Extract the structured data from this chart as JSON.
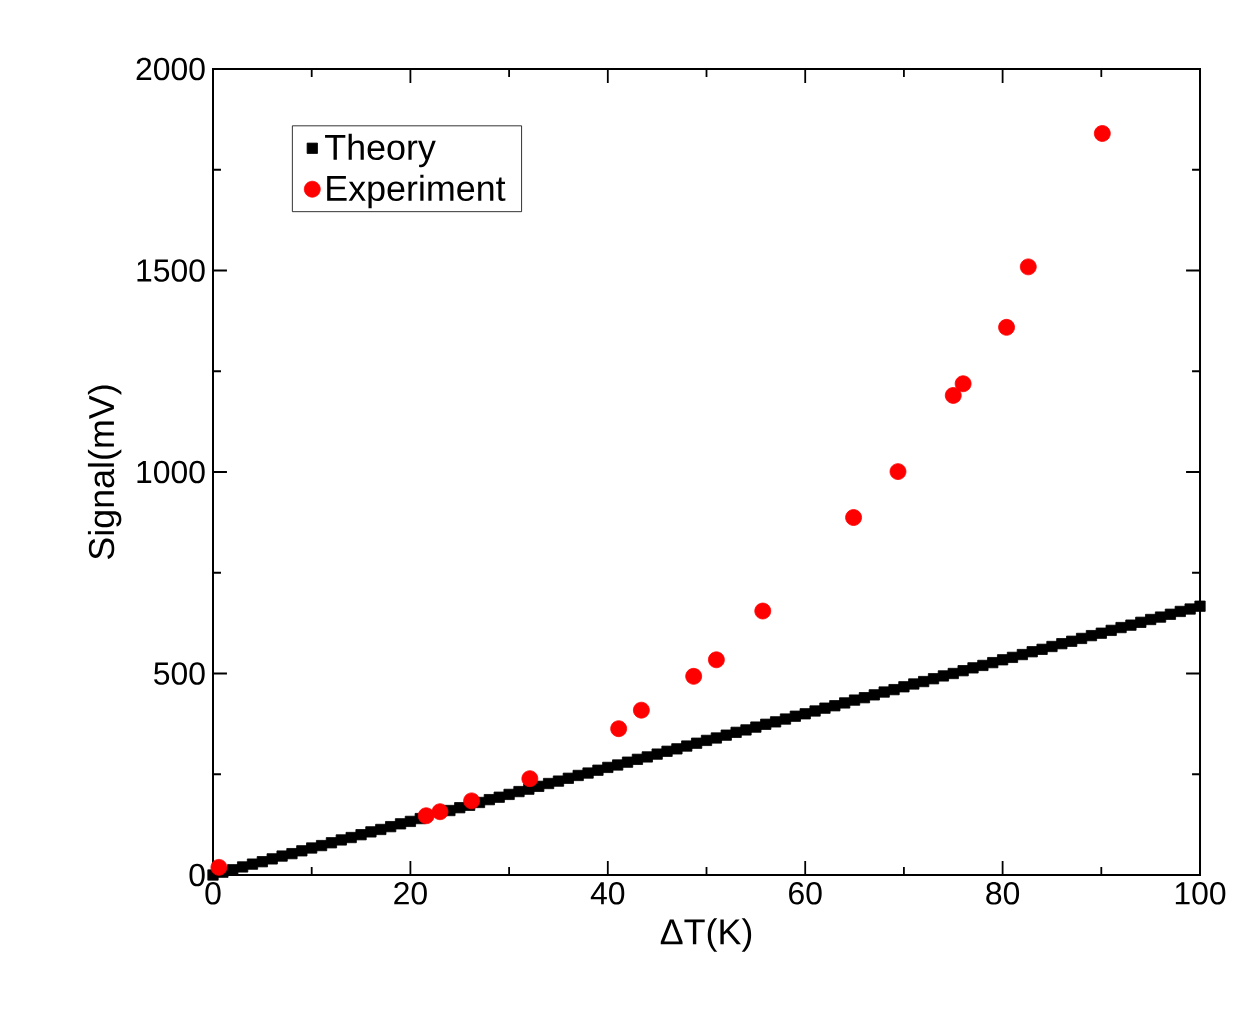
{
  "chart_data": {
    "type": "scatter",
    "xlabel": "ΔT(K)",
    "ylabel": "Signal(mV)",
    "xlim": [
      0,
      100
    ],
    "ylim": [
      0,
      2000
    ],
    "xticks": [
      0,
      20,
      40,
      60,
      80,
      100
    ],
    "yticks": [
      0,
      500,
      1000,
      1500,
      2000
    ],
    "legend": "top left",
    "grid": false,
    "series": [
      {
        "name": "Theory",
        "color": "#000000",
        "marker": "square",
        "x": [
          0,
          1,
          2,
          3,
          4,
          5,
          6,
          7,
          8,
          9,
          10,
          11,
          12,
          13,
          14,
          15,
          16,
          17,
          18,
          19,
          20,
          21,
          22,
          23,
          24,
          25,
          26,
          27,
          28,
          29,
          30,
          31,
          32,
          33,
          34,
          35,
          36,
          37,
          38,
          39,
          40,
          41,
          42,
          43,
          44,
          45,
          46,
          47,
          48,
          49,
          50,
          51,
          52,
          53,
          54,
          55,
          56,
          57,
          58,
          59,
          60,
          61,
          62,
          63,
          64,
          65,
          66,
          67,
          68,
          69,
          70,
          71,
          72,
          73,
          74,
          75,
          76,
          77,
          78,
          79,
          80,
          81,
          82,
          83,
          84,
          85,
          86,
          87,
          88,
          89,
          90,
          91,
          92,
          93,
          94,
          95,
          96,
          97,
          98,
          99,
          100
        ],
        "values": [
          0,
          7,
          13,
          20,
          27,
          33,
          40,
          47,
          53,
          60,
          67,
          73,
          80,
          87,
          93,
          100,
          107,
          113,
          120,
          127,
          133,
          140,
          null,
          null,
          160,
          167,
          173,
          180,
          187,
          193,
          200,
          207,
          213,
          220,
          227,
          233,
          240,
          247,
          253,
          260,
          267,
          273,
          280,
          287,
          293,
          300,
          307,
          313,
          320,
          327,
          334,
          340,
          347,
          354,
          360,
          367,
          374,
          380,
          387,
          394,
          400,
          407,
          414,
          420,
          427,
          434,
          440,
          447,
          454,
          460,
          467,
          474,
          480,
          487,
          494,
          500,
          507,
          514,
          520,
          527,
          534,
          540,
          547,
          554,
          560,
          567,
          574,
          580,
          587,
          594,
          600,
          607,
          614,
          620,
          627,
          634,
          640,
          647,
          654,
          660,
          667
        ]
      },
      {
        "name": "Experiment",
        "color": "#ff0000",
        "marker": "circle",
        "x": [
          0.6,
          21.6,
          23.0,
          26.2,
          32.1,
          41.1,
          43.4,
          48.7,
          51.0,
          55.7,
          64.9,
          69.4,
          75.0,
          76.0,
          80.4,
          82.6,
          90.1
        ],
        "values": [
          19,
          147,
          157,
          184,
          239,
          363,
          409,
          493,
          534,
          655,
          887,
          1001,
          1190,
          1219,
          1359,
          1509,
          1840
        ]
      }
    ]
  }
}
